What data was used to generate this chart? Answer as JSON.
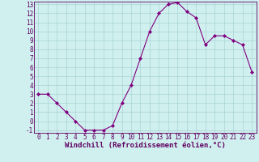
{
  "x": [
    0,
    1,
    2,
    3,
    4,
    5,
    6,
    7,
    8,
    9,
    10,
    11,
    12,
    13,
    14,
    15,
    16,
    17,
    18,
    19,
    20,
    21,
    22,
    23
  ],
  "y": [
    3.0,
    3.0,
    2.0,
    1.0,
    0.0,
    -1.0,
    -1.0,
    -1.0,
    -0.5,
    2.0,
    4.0,
    7.0,
    10.0,
    12.0,
    13.0,
    13.2,
    12.2,
    11.5,
    8.5,
    9.5,
    9.5,
    9.0,
    8.5,
    5.5
  ],
  "line_color": "#800080",
  "marker": "D",
  "marker_size": 2.0,
  "bg_color": "#d0efef",
  "grid_color": "#a8d4d4",
  "xlabel": "Windchill (Refroidissement éolien,°C)",
  "xlim_min": -0.5,
  "xlim_max": 23.5,
  "ylim_min": -1.3,
  "ylim_max": 13.3,
  "xticks": [
    0,
    1,
    2,
    3,
    4,
    5,
    6,
    7,
    8,
    9,
    10,
    11,
    12,
    13,
    14,
    15,
    16,
    17,
    18,
    19,
    20,
    21,
    22,
    23
  ],
  "yticks": [
    -1,
    0,
    1,
    2,
    3,
    4,
    5,
    6,
    7,
    8,
    9,
    10,
    11,
    12,
    13
  ],
  "axis_color": "#600060",
  "tick_font_size": 5.5,
  "xlabel_font_size": 6.5
}
